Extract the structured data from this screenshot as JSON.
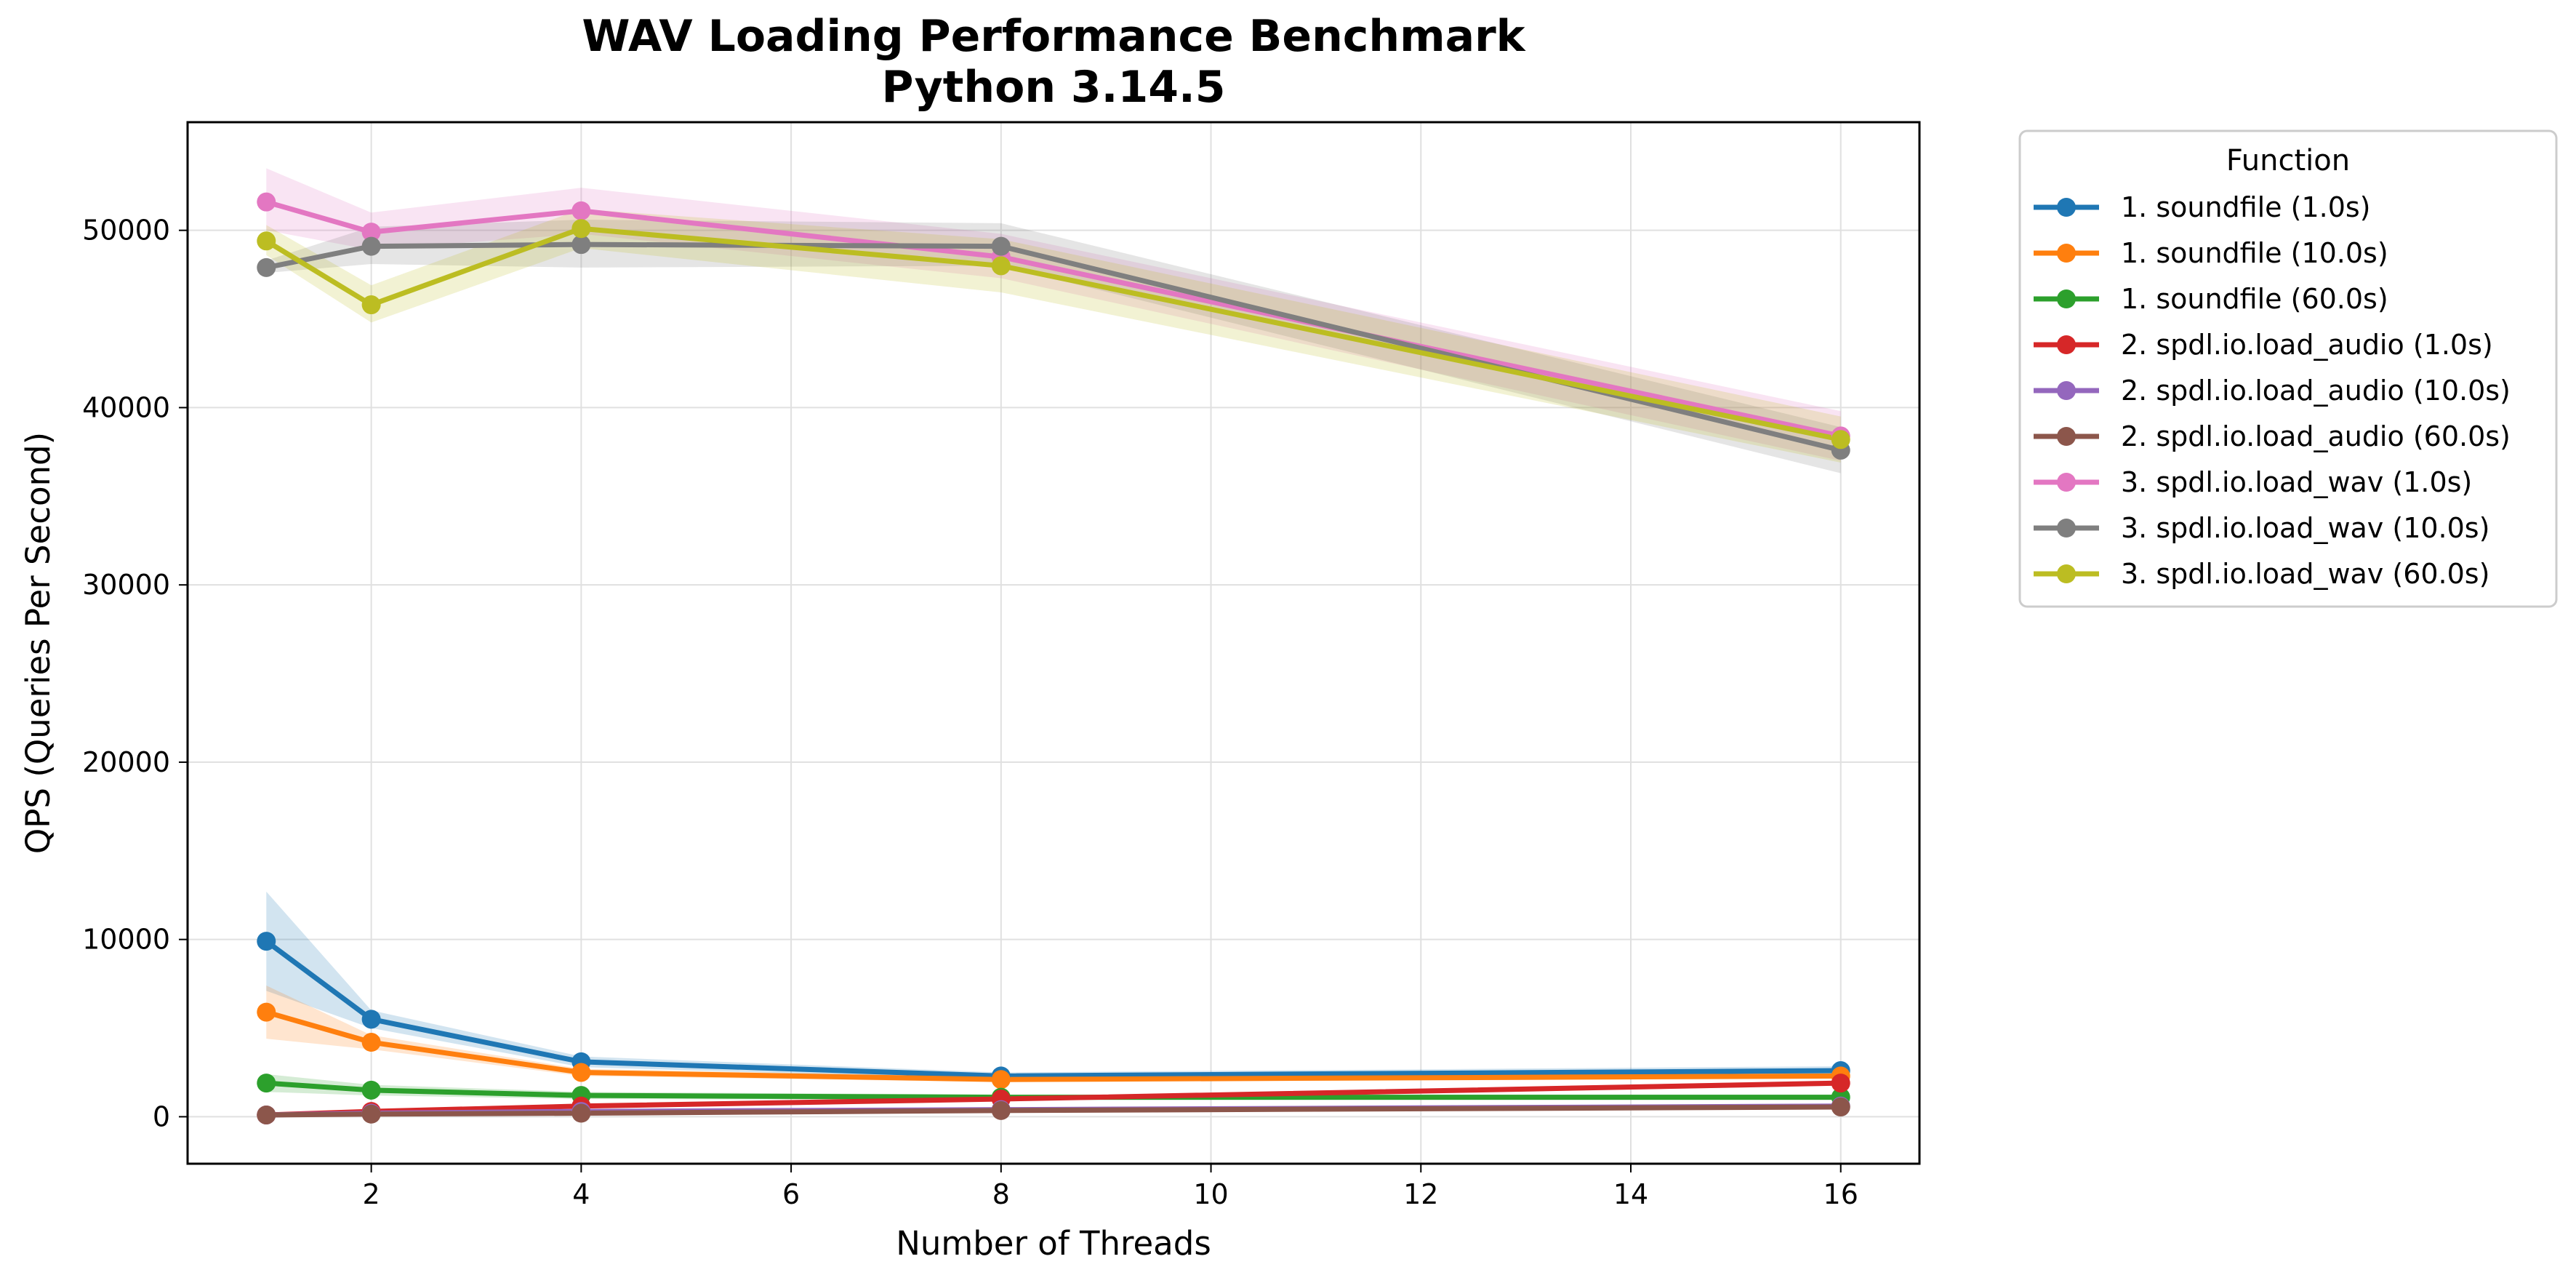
{
  "chart_data": {
    "type": "line",
    "title": "WAV Loading Performance Benchmark",
    "subtitle": "Python 3.14.5",
    "xlabel": "Number of Threads",
    "ylabel": "QPS (Queries Per Second)",
    "xlim": [
      0.25,
      16.75
    ],
    "ylim": [
      -2650,
      56100
    ],
    "x_ticks": [
      2,
      4,
      6,
      8,
      10,
      12,
      14,
      16
    ],
    "y_ticks": [
      0,
      10000,
      20000,
      30000,
      40000,
      50000
    ],
    "grid": true,
    "legend": {
      "title": "Function",
      "placement": "outside upper right"
    },
    "x": [
      1,
      2,
      4,
      8,
      16
    ],
    "series": [
      {
        "name": "1. soundfile (1.0s)",
        "color": "#1f77b4",
        "values": [
          9900,
          5500,
          3100,
          2300,
          2600
        ],
        "band_lo": [
          7100,
          5000,
          2800,
          2100,
          2350
        ],
        "band_hi": [
          12700,
          6000,
          3400,
          2500,
          2850
        ]
      },
      {
        "name": "1. soundfile (10.0s)",
        "color": "#ff7f0e",
        "values": [
          5900,
          4200,
          2500,
          2100,
          2300
        ],
        "band_lo": [
          4400,
          3800,
          2300,
          1950,
          2150
        ],
        "band_hi": [
          7400,
          4600,
          2700,
          2250,
          2450
        ]
      },
      {
        "name": "1. soundfile (60.0s)",
        "color": "#2ca02c",
        "values": [
          1900,
          1500,
          1200,
          1100,
          1100
        ],
        "band_lo": [
          1400,
          1200,
          1000,
          950,
          950
        ],
        "band_hi": [
          2400,
          1800,
          1400,
          1250,
          1250
        ]
      },
      {
        "name": "2. spdl.io.load_audio (1.0s)",
        "color": "#d62728",
        "values": [
          100,
          300,
          600,
          1000,
          1900
        ],
        "band_lo": [
          50,
          200,
          500,
          900,
          1750
        ],
        "band_hi": [
          150,
          400,
          700,
          1100,
          2050
        ]
      },
      {
        "name": "2. spdl.io.load_audio (10.0s)",
        "color": "#9467bd",
        "values": [
          100,
          200,
          300,
          400,
          600
        ],
        "band_lo": [
          50,
          150,
          250,
          350,
          500
        ],
        "band_hi": [
          150,
          250,
          350,
          450,
          700
        ]
      },
      {
        "name": "2. spdl.io.load_audio (60.0s)",
        "color": "#8c564b",
        "values": [
          100,
          150,
          200,
          350,
          550
        ],
        "band_lo": [
          50,
          100,
          150,
          300,
          450
        ],
        "band_hi": [
          150,
          200,
          250,
          400,
          650
        ]
      },
      {
        "name": "3. spdl.io.load_wav (1.0s)",
        "color": "#e377c2",
        "values": [
          51600,
          49900,
          51100,
          48500,
          38400
        ],
        "band_lo": [
          50000,
          48900,
          49800,
          47300,
          37000
        ],
        "band_hi": [
          53500,
          51000,
          52400,
          49800,
          39800
        ]
      },
      {
        "name": "3. spdl.io.load_wav (10.0s)",
        "color": "#7f7f7f",
        "values": [
          47900,
          49100,
          49200,
          49100,
          37600
        ],
        "band_lo": [
          47600,
          48100,
          47900,
          48000,
          36300
        ],
        "band_hi": [
          48300,
          50200,
          50600,
          50400,
          38900
        ]
      },
      {
        "name": "3. spdl.io.load_wav (60.0s)",
        "color": "#bcbd22",
        "values": [
          49400,
          45800,
          50100,
          48000,
          38200
        ],
        "band_lo": [
          48600,
          44800,
          49000,
          46500,
          36900
        ],
        "band_hi": [
          50300,
          46900,
          51200,
          49500,
          39500
        ]
      }
    ]
  }
}
